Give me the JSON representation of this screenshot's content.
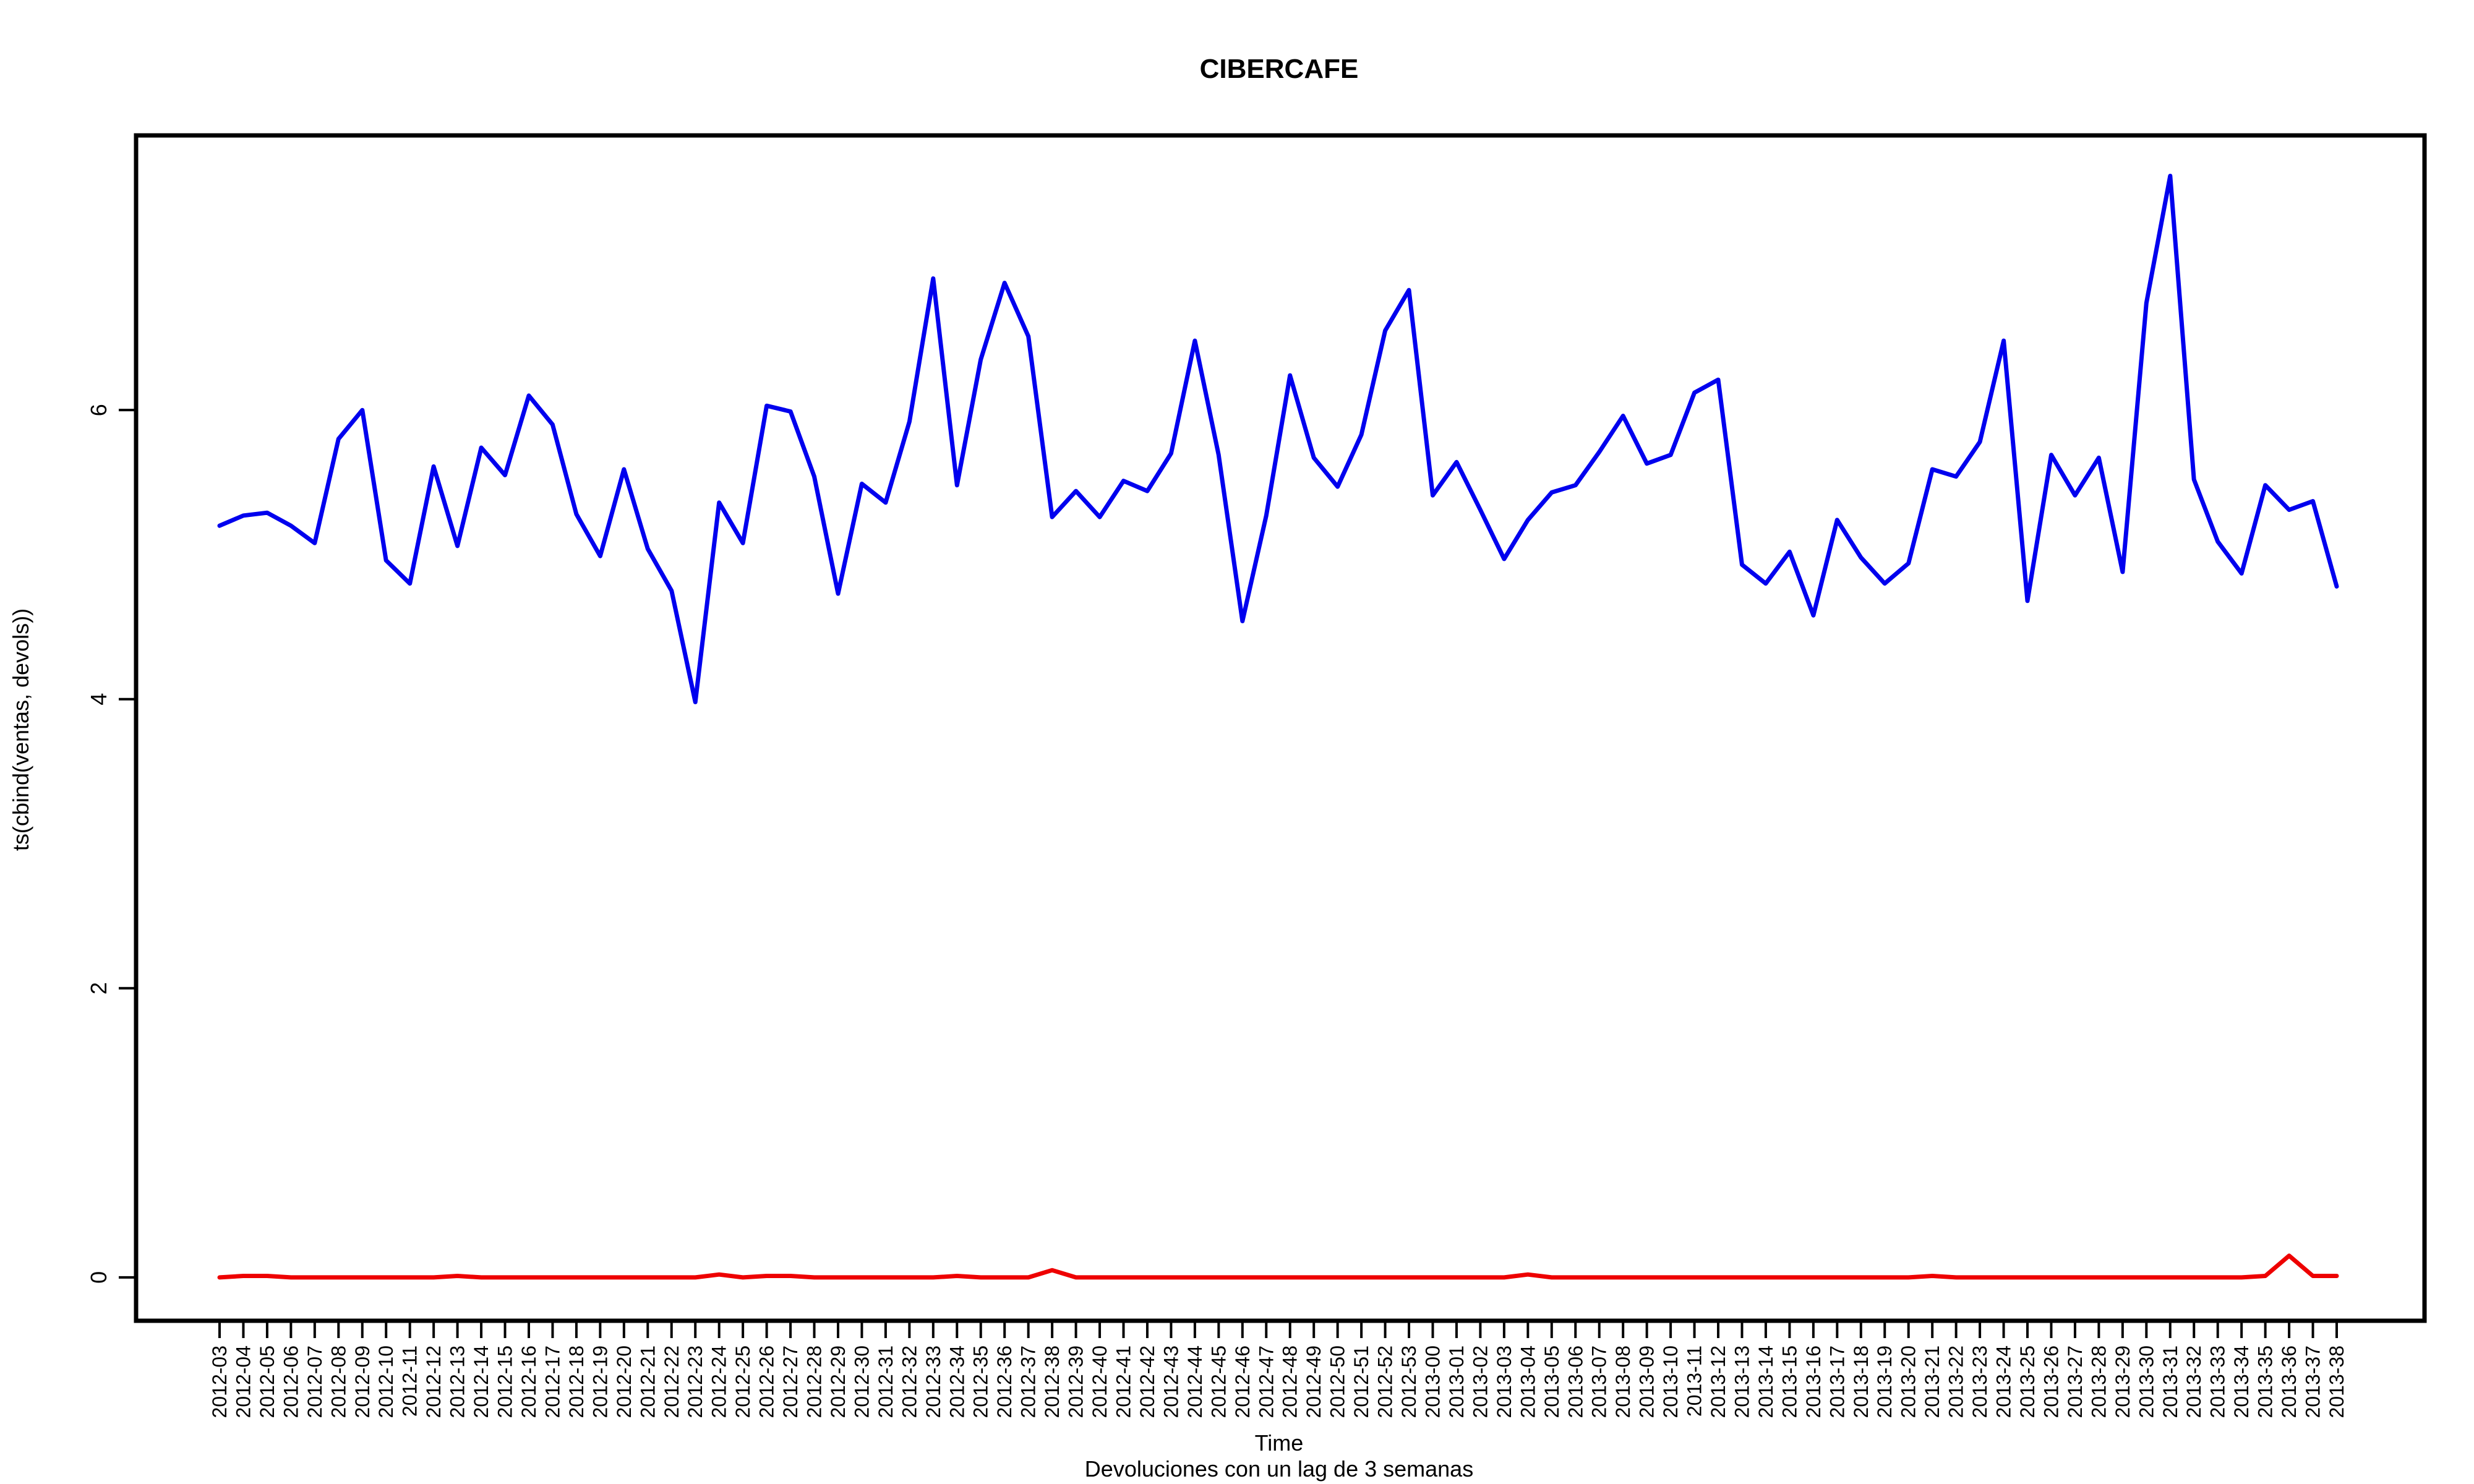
{
  "chart_data": {
    "type": "line",
    "title": "CIBERCAFE",
    "xlabel": "Time",
    "subtitle": "Devoluciones con un lag de 3 semanas",
    "ylabel": "ts(cbind(ventas, devols))",
    "ylim": [
      -0.3,
      7.9
    ],
    "yticks": [
      0,
      2,
      4,
      6
    ],
    "grid": false,
    "legend": "none",
    "categories": [
      "2012-03",
      "2012-04",
      "2012-05",
      "2012-06",
      "2012-07",
      "2012-08",
      "2012-09",
      "2012-10",
      "2012-11",
      "2012-12",
      "2012-13",
      "2012-14",
      "2012-15",
      "2012-16",
      "2012-17",
      "2012-18",
      "2012-19",
      "2012-20",
      "2012-21",
      "2012-22",
      "2012-23",
      "2012-24",
      "2012-25",
      "2012-26",
      "2012-27",
      "2012-28",
      "2012-29",
      "2012-30",
      "2012-31",
      "2012-32",
      "2012-33",
      "2012-34",
      "2012-35",
      "2012-36",
      "2012-37",
      "2012-38",
      "2012-39",
      "2012-40",
      "2012-41",
      "2012-42",
      "2012-43",
      "2012-44",
      "2012-45",
      "2012-46",
      "2012-47",
      "2012-48",
      "2012-49",
      "2012-50",
      "2012-51",
      "2012-52",
      "2012-53",
      "2013-00",
      "2013-01",
      "2013-02",
      "2013-03",
      "2013-04",
      "2013-05",
      "2013-06",
      "2013-07",
      "2013-08",
      "2013-09",
      "2013-10",
      "2013-11",
      "2013-12",
      "2013-13",
      "2013-14",
      "2013-15",
      "2013-16",
      "2013-17",
      "2013-18",
      "2013-19",
      "2013-20",
      "2013-21",
      "2013-22",
      "2013-23",
      "2013-24",
      "2013-25",
      "2013-26",
      "2013-27",
      "2013-28",
      "2013-29",
      "2013-30",
      "2013-31",
      "2013-32",
      "2013-33",
      "2013-34",
      "2013-35",
      "2013-36",
      "2013-37",
      "2013-38"
    ],
    "series": [
      {
        "color": "#0000ee",
        "values": [
          5.2,
          5.27,
          5.29,
          5.2,
          5.08,
          5.8,
          6.0,
          4.96,
          4.8,
          5.61,
          5.06,
          5.74,
          5.55,
          6.1,
          5.9,
          5.28,
          4.99,
          5.59,
          5.04,
          4.75,
          3.98,
          5.36,
          5.08,
          6.03,
          5.99,
          5.54,
          4.73,
          5.49,
          5.36,
          5.92,
          6.91,
          5.48,
          6.35,
          6.88,
          6.51,
          5.26,
          5.44,
          5.26,
          5.51,
          5.44,
          5.7,
          6.48,
          5.69,
          4.54,
          5.27,
          6.24,
          5.67,
          5.47,
          5.83,
          6.55,
          6.83,
          5.41,
          5.64,
          5.31,
          4.97,
          5.24,
          5.43,
          5.48,
          5.71,
          5.96,
          5.63,
          5.69,
          6.12,
          6.21,
          4.93,
          4.8,
          5.02,
          4.58,
          5.24,
          4.98,
          4.8,
          4.94,
          5.59,
          5.54,
          5.78,
          6.48,
          4.68,
          5.69,
          5.41,
          5.67,
          4.88,
          6.74,
          7.62,
          5.52,
          5.09,
          4.87,
          5.48,
          5.31,
          5.37,
          4.78
        ]
      },
      {
        "color": "#ee0000",
        "values": [
          0.0,
          0.01,
          0.01,
          0.0,
          0.0,
          0.0,
          0.0,
          0.0,
          0.0,
          0.0,
          0.01,
          0.0,
          0.0,
          0.0,
          0.0,
          0.0,
          0.0,
          0.0,
          0.0,
          0.0,
          0.0,
          0.02,
          0.0,
          0.01,
          0.01,
          0.0,
          0.0,
          0.0,
          0.0,
          0.0,
          0.0,
          0.01,
          0.0,
          0.0,
          0.0,
          0.05,
          0.0,
          0.0,
          0.0,
          0.0,
          0.0,
          0.0,
          0.0,
          0.0,
          0.0,
          0.0,
          0.0,
          0.0,
          0.0,
          0.0,
          0.0,
          0.0,
          0.0,
          0.0,
          0.0,
          0.02,
          0.0,
          0.0,
          0.0,
          0.0,
          0.0,
          0.0,
          0.0,
          0.0,
          0.0,
          0.0,
          0.0,
          0.0,
          0.0,
          0.0,
          0.0,
          0.0,
          0.01,
          0.0,
          0.0,
          0.0,
          0.0,
          0.0,
          0.0,
          0.0,
          0.0,
          0.0,
          0.0,
          0.0,
          0.0,
          0.0,
          0.01,
          0.15,
          0.01,
          0.01
        ]
      }
    ]
  }
}
